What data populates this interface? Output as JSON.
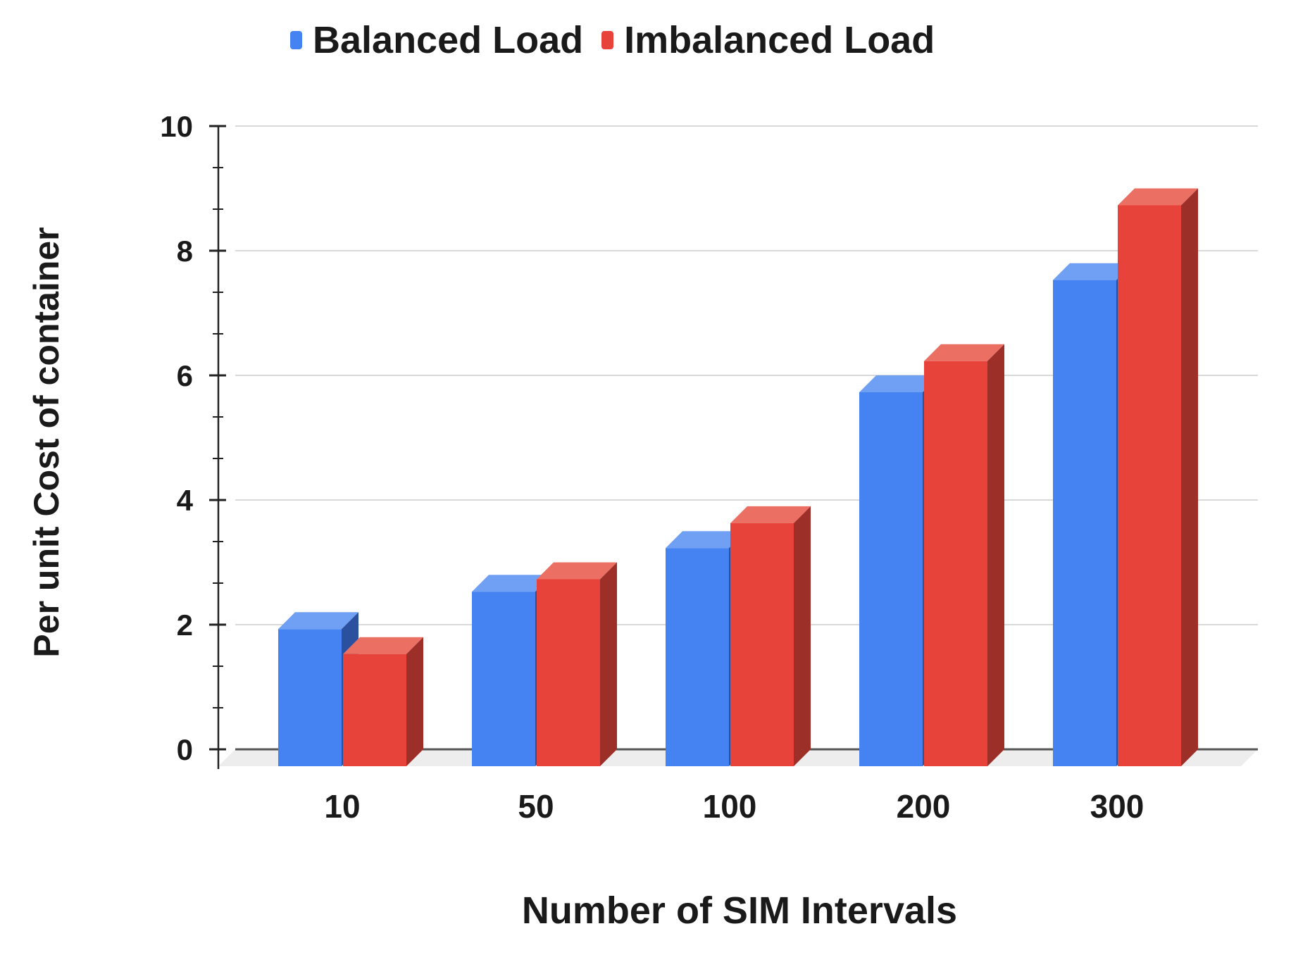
{
  "chart_data": {
    "type": "bar",
    "style": "3d-column",
    "title": "",
    "categories": [
      "10",
      "50",
      "100",
      "200",
      "300"
    ],
    "series": [
      {
        "name": "Balanced Load",
        "values": [
          2.2,
          2.8,
          3.5,
          6.0,
          7.8
        ],
        "color": "#4583F2",
        "color_top": "#6FA0F4",
        "color_side": "#2B509E"
      },
      {
        "name": "Imbalanced Load",
        "values": [
          1.8,
          3.0,
          3.9,
          6.5,
          9.0
        ],
        "color": "#E8433A",
        "color_top": "#EC6F63",
        "color_side": "#9C2F28"
      }
    ],
    "xlabel": "Number of SIM Intervals",
    "ylabel": "Per unit Cost of container",
    "ylim": [
      0,
      10
    ],
    "yticks": [
      0,
      2,
      4,
      6,
      8,
      10
    ],
    "minor_ticks_between_majors": 2,
    "grid": true,
    "legend_position": "top",
    "colors": {
      "gridline": "#D9D9D9",
      "zero_line": "#555555",
      "axis": "#212121",
      "floor": "#EDEDED",
      "text": "#1A1A1A",
      "background": "#FFFFFF"
    }
  }
}
